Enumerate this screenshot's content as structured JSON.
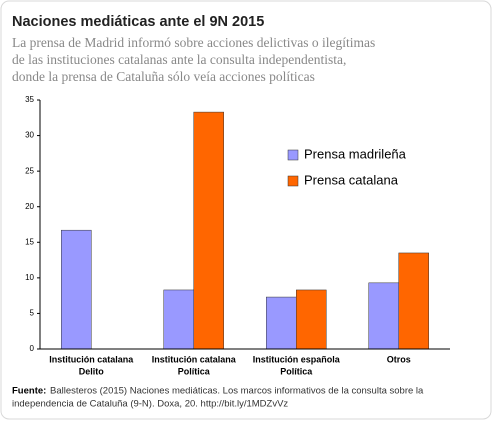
{
  "chart_data": {
    "type": "bar",
    "title": "Naciones mediáticas ante el 9N 2015",
    "subtitle": [
      "La prensa de Madrid informó sobre acciones delictivas o ilegítimas",
      "de las instituciones catalanas ante la consulta independentista,",
      "donde la prensa de Cataluña sólo veía acciones políticas"
    ],
    "categories": [
      [
        "Institución catalana",
        "Delito"
      ],
      [
        "Institución catalana",
        "Política"
      ],
      [
        "Institución española",
        "Política"
      ],
      [
        "Otros"
      ]
    ],
    "series": [
      {
        "name": "Prensa madrileña",
        "color": "#9999ff",
        "values": [
          16.7,
          8.3,
          7.3,
          9.3
        ]
      },
      {
        "name": "Prensa catalana",
        "color": "#ff6600",
        "values": [
          0,
          33.3,
          8.3,
          13.5
        ]
      }
    ],
    "ylim": [
      0,
      35
    ],
    "yticks": [
      0,
      5,
      10,
      15,
      20,
      25,
      30,
      35
    ],
    "grid": false,
    "legend": "upper right",
    "source_label": "Fuente:",
    "source_lines": [
      "Ballesteros (2015) Naciones mediáticas. Los marcos informativos de la consulta sobre la",
      "independencia de Cataluña (9-N). Doxa, 20. http://bit.ly/1MDZvVz"
    ]
  }
}
